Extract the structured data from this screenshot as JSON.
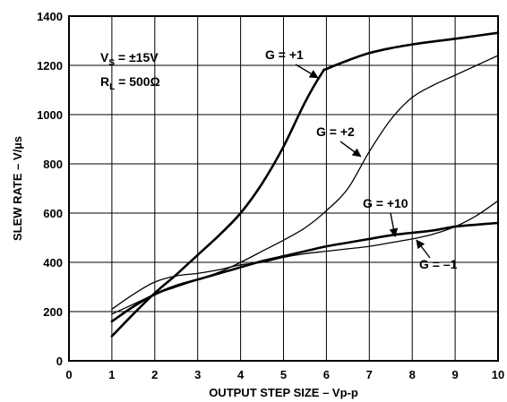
{
  "chart_data": {
    "type": "line",
    "xlabel": "OUTPUT STEP SIZE – Vp-p",
    "ylabel": "SLEW RATE – V/µs",
    "xlim": [
      0,
      10
    ],
    "ylim": [
      0,
      1400
    ],
    "x_ticks": [
      "0",
      "1",
      "2",
      "3",
      "4",
      "5",
      "6",
      "7",
      "8",
      "9",
      "10"
    ],
    "y_ticks": [
      "0",
      "200",
      "400",
      "600",
      "800",
      "1000",
      "1200",
      "1400"
    ],
    "grid": true,
    "conditions": {
      "vs": {
        "main": "V",
        "sub": "S",
        "value": " = ±15V"
      },
      "rl": {
        "main": "R",
        "sub": "L",
        "value": " = 500Ω"
      }
    },
    "series": [
      {
        "name": "G = +1",
        "bold": true,
        "x": [
          1.0,
          1.5,
          2.0,
          2.5,
          3.0,
          3.5,
          4.0,
          4.5,
          5.0,
          5.5,
          5.9,
          6.0,
          6.5,
          7.0,
          7.5,
          8.0,
          8.5,
          9.0,
          9.5,
          10.0
        ],
        "y": [
          100,
          190,
          275,
          350,
          430,
          510,
          600,
          720,
          870,
          1050,
          1170,
          1185,
          1220,
          1250,
          1270,
          1285,
          1297,
          1308,
          1320,
          1332
        ]
      },
      {
        "name": "G = +2",
        "bold": false,
        "x": [
          1.0,
          1.5,
          2.0,
          2.5,
          3.0,
          3.5,
          4.0,
          4.5,
          5.0,
          5.5,
          6.0,
          6.5,
          7.0,
          7.5,
          8.0,
          8.5,
          9.0,
          9.5,
          10.0
        ],
        "y": [
          190,
          230,
          270,
          300,
          330,
          360,
          400,
          445,
          490,
          540,
          610,
          700,
          850,
          980,
          1070,
          1120,
          1160,
          1200,
          1240
        ]
      },
      {
        "name": "G = +10",
        "bold": true,
        "x": [
          1.0,
          1.5,
          2.0,
          2.5,
          3.0,
          3.5,
          4.0,
          4.5,
          5.0,
          5.5,
          6.0,
          6.5,
          7.0,
          7.5,
          8.0,
          8.5,
          9.0,
          9.5,
          10.0
        ],
        "y": [
          160,
          220,
          270,
          305,
          330,
          355,
          380,
          405,
          425,
          445,
          465,
          480,
          495,
          510,
          520,
          530,
          545,
          553,
          560
        ]
      },
      {
        "name": "G = –1",
        "bold": false,
        "x": [
          1.0,
          1.5,
          2.0,
          2.5,
          3.0,
          3.5,
          4.0,
          4.5,
          5.0,
          5.5,
          6.0,
          6.5,
          7.0,
          7.5,
          8.0,
          8.5,
          9.0,
          9.5,
          10.0
        ],
        "y": [
          210,
          270,
          320,
          345,
          355,
          370,
          390,
          400,
          420,
          435,
          445,
          455,
          465,
          480,
          495,
          515,
          545,
          590,
          650
        ]
      }
    ],
    "annotations": [
      {
        "text": "G = +1",
        "series": "G = +1",
        "point": [
          5.8,
          1150
        ]
      },
      {
        "text": "G = +2",
        "series": "G = +2",
        "point": [
          6.8,
          830
        ]
      },
      {
        "text": "G = +10",
        "series": "G = +10",
        "point": [
          7.6,
          505
        ]
      },
      {
        "text": "G = –1",
        "series": "G = –1",
        "point": [
          8.1,
          490
        ]
      }
    ]
  }
}
